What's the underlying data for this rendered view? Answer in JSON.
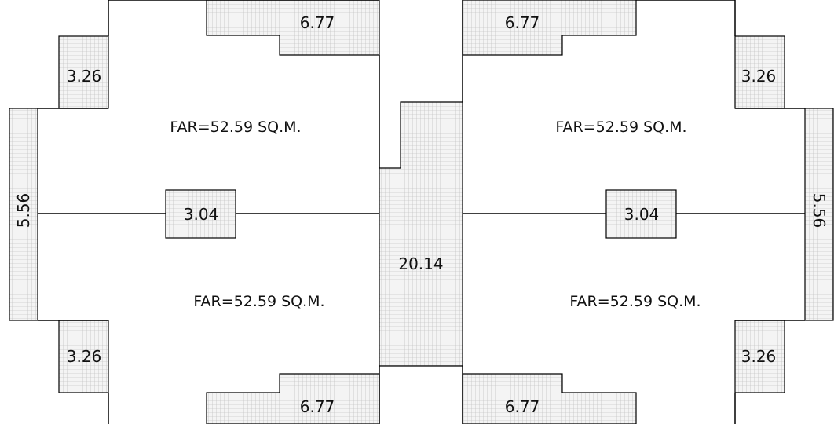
{
  "plan": {
    "far_labels": {
      "top_left": "FAR=52.59 SQ.M.",
      "bottom_left": "FAR=52.59 SQ.M.",
      "top_right": "FAR=52.59 SQ.M.",
      "bottom_right": "FAR=52.59 SQ.M."
    },
    "areas": {
      "top_left_balcony": "6.77",
      "bottom_left_balcony": "6.77",
      "top_right_balcony": "6.77",
      "bottom_right_balcony": "6.77",
      "left_upper_bay": "3.26",
      "left_lower_bay": "3.26",
      "right_upper_bay": "3.26",
      "right_lower_bay": "3.26",
      "left_side_strip": "5.56",
      "right_side_strip": "5.56",
      "left_center_box": "3.04",
      "right_center_box": "3.04",
      "central_core": "20.14"
    }
  }
}
